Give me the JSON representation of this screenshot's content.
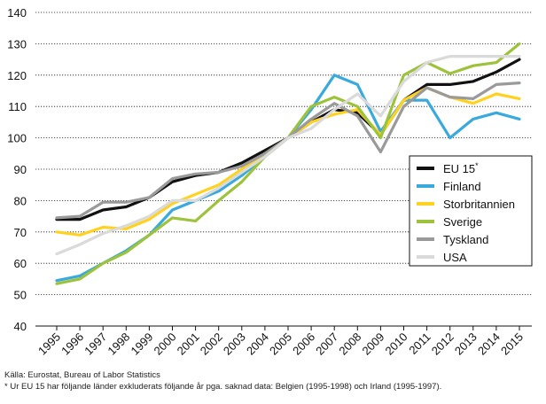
{
  "chart_data": {
    "type": "line",
    "title": "",
    "xlabel": "",
    "ylabel": "",
    "ylim": [
      40,
      140
    ],
    "yticks": [
      40,
      50,
      60,
      70,
      80,
      90,
      100,
      110,
      120,
      130,
      140
    ],
    "ytick_labels": [
      "40",
      "50",
      "60",
      "70",
      "80",
      "90",
      "100",
      "110",
      "120",
      "130",
      "140"
    ],
    "grid": "horizontal",
    "legend_position": "right",
    "categories": [
      "1995",
      "1996",
      "1997",
      "1998",
      "1999",
      "2000",
      "2001",
      "2002",
      "2003",
      "2004",
      "2005",
      "2006",
      "2007",
      "2008",
      "2009",
      "2010",
      "2011",
      "2012",
      "2013",
      "2014",
      "2015"
    ],
    "series": [
      {
        "name": "EU 15",
        "superscript": "*",
        "color": "#111111",
        "values": [
          74,
          74,
          77,
          78,
          81,
          86,
          88,
          89,
          92,
          96,
          100,
          105,
          109,
          108,
          101,
          112,
          117,
          117,
          118,
          121,
          125
        ]
      },
      {
        "name": "Finland",
        "superscript": "",
        "color": "#3aa9dc",
        "values": [
          54.5,
          56,
          60,
          64,
          69,
          77,
          80,
          83,
          88,
          94,
          100,
          109,
          120,
          117,
          102,
          112,
          112,
          100,
          106,
          108,
          106
        ]
      },
      {
        "name": "Storbritannien",
        "superscript": "",
        "color": "#ffd21f",
        "values": [
          70,
          69,
          71.5,
          71,
          74,
          79,
          82,
          85,
          90,
          95,
          100,
          105,
          107.5,
          109,
          101,
          112,
          116,
          113,
          111,
          114,
          112.5
        ]
      },
      {
        "name": "Sverige",
        "superscript": "",
        "color": "#9dc23c",
        "values": [
          53.5,
          55,
          60,
          63.5,
          69,
          74.5,
          73.5,
          80,
          86,
          94,
          100,
          110,
          113,
          110,
          100,
          120,
          124,
          120.5,
          123,
          124,
          130
        ]
      },
      {
        "name": "Tyskland",
        "superscript": "",
        "color": "#9a9a9a",
        "values": [
          74.5,
          75,
          79.5,
          79.5,
          81,
          87,
          88.5,
          89,
          91,
          95,
          100,
          106,
          111,
          107,
          95.5,
          110,
          116,
          113,
          112.5,
          117,
          117.5
        ]
      },
      {
        "name": "USA",
        "superscript": "",
        "color": "#dadada",
        "values": [
          63,
          66,
          69.5,
          72,
          75,
          80,
          80,
          84,
          89,
          94,
          100,
          103,
          109,
          114,
          107,
          118,
          124,
          126,
          126,
          126,
          126
        ]
      }
    ]
  },
  "footnotes": {
    "source": "Källa: Eurostat, Bureau of Labor Statistics",
    "asterisk": "* Ur EU 15 har följande länder exkluderats följande år pga. saknad data: Belgien (1995-1998) och Irland (1995-1997)."
  }
}
